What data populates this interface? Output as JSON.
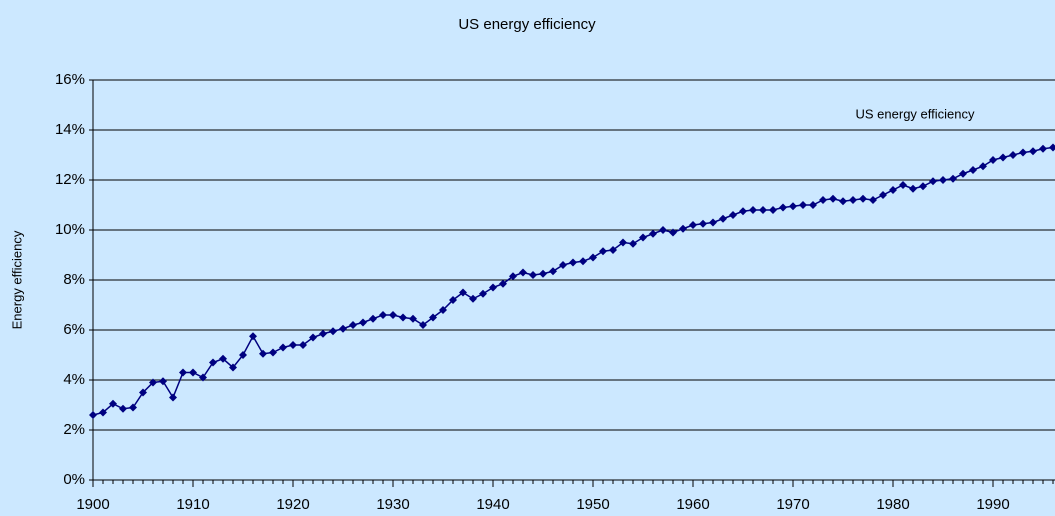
{
  "chart_data": {
    "type": "line",
    "title": "US energy efficiency",
    "y_label": "Energy efficiency",
    "x": [
      1900,
      1901,
      1902,
      1903,
      1904,
      1905,
      1906,
      1907,
      1908,
      1909,
      1910,
      1911,
      1912,
      1913,
      1914,
      1915,
      1916,
      1917,
      1918,
      1919,
      1920,
      1921,
      1922,
      1923,
      1924,
      1925,
      1926,
      1927,
      1928,
      1929,
      1930,
      1931,
      1932,
      1933,
      1934,
      1935,
      1936,
      1937,
      1938,
      1939,
      1940,
      1941,
      1942,
      1943,
      1944,
      1945,
      1946,
      1947,
      1948,
      1949,
      1950,
      1951,
      1952,
      1953,
      1954,
      1955,
      1956,
      1957,
      1958,
      1959,
      1960,
      1961,
      1962,
      1963,
      1964,
      1965,
      1966,
      1967,
      1968,
      1969,
      1970,
      1971,
      1972,
      1973,
      1974,
      1975,
      1976,
      1977,
      1978,
      1979,
      1980,
      1981,
      1982,
      1983,
      1984,
      1985,
      1986,
      1987,
      1988,
      1989,
      1990,
      1991,
      1992,
      1993,
      1994,
      1995,
      1996
    ],
    "series": [
      {
        "name": "US energy efficiency",
        "color": "#000080",
        "values": [
          2.6,
          2.7,
          3.05,
          2.85,
          2.9,
          3.5,
          3.9,
          3.95,
          3.3,
          4.3,
          4.3,
          4.1,
          4.7,
          4.85,
          4.5,
          5.0,
          5.75,
          5.05,
          5.1,
          5.3,
          5.4,
          5.4,
          5.7,
          5.85,
          5.95,
          6.05,
          6.2,
          6.3,
          6.45,
          6.6,
          6.6,
          6.5,
          6.45,
          6.2,
          6.5,
          6.8,
          7.2,
          7.5,
          7.25,
          7.45,
          7.7,
          7.85,
          8.15,
          8.3,
          8.2,
          8.25,
          8.35,
          8.6,
          8.7,
          8.75,
          8.9,
          9.15,
          9.2,
          9.5,
          9.45,
          9.7,
          9.85,
          10.0,
          9.9,
          10.05,
          10.2,
          10.25,
          10.3,
          10.45,
          10.6,
          10.75,
          10.8,
          10.8,
          10.8,
          10.9,
          10.95,
          11.0,
          11.0,
          11.2,
          11.25,
          11.15,
          11.2,
          11.25,
          11.2,
          11.4,
          11.6,
          11.8,
          11.65,
          11.75,
          11.95,
          12.0,
          12.05,
          12.25,
          12.4,
          12.55,
          12.8,
          12.9,
          13.0,
          13.1,
          13.15,
          13.25,
          13.3
        ]
      }
    ],
    "xlim": [
      1900,
      1996.2
    ],
    "xticks": [
      1900,
      1910,
      1920,
      1930,
      1940,
      1950,
      1960,
      1970,
      1980,
      1990
    ],
    "ylim": [
      0,
      16
    ],
    "yticks": [
      {
        "value": 0,
        "label": "0%"
      },
      {
        "value": 2,
        "label": "2%"
      },
      {
        "value": 4,
        "label": "4%"
      },
      {
        "value": 6,
        "label": "6%"
      },
      {
        "value": 8,
        "label": "8%"
      },
      {
        "value": 10,
        "label": "10%"
      },
      {
        "value": 12,
        "label": "12%"
      },
      {
        "value": 14,
        "label": "14%"
      },
      {
        "value": 16,
        "label": "16%"
      }
    ],
    "grid": true,
    "legend": "top-right"
  }
}
